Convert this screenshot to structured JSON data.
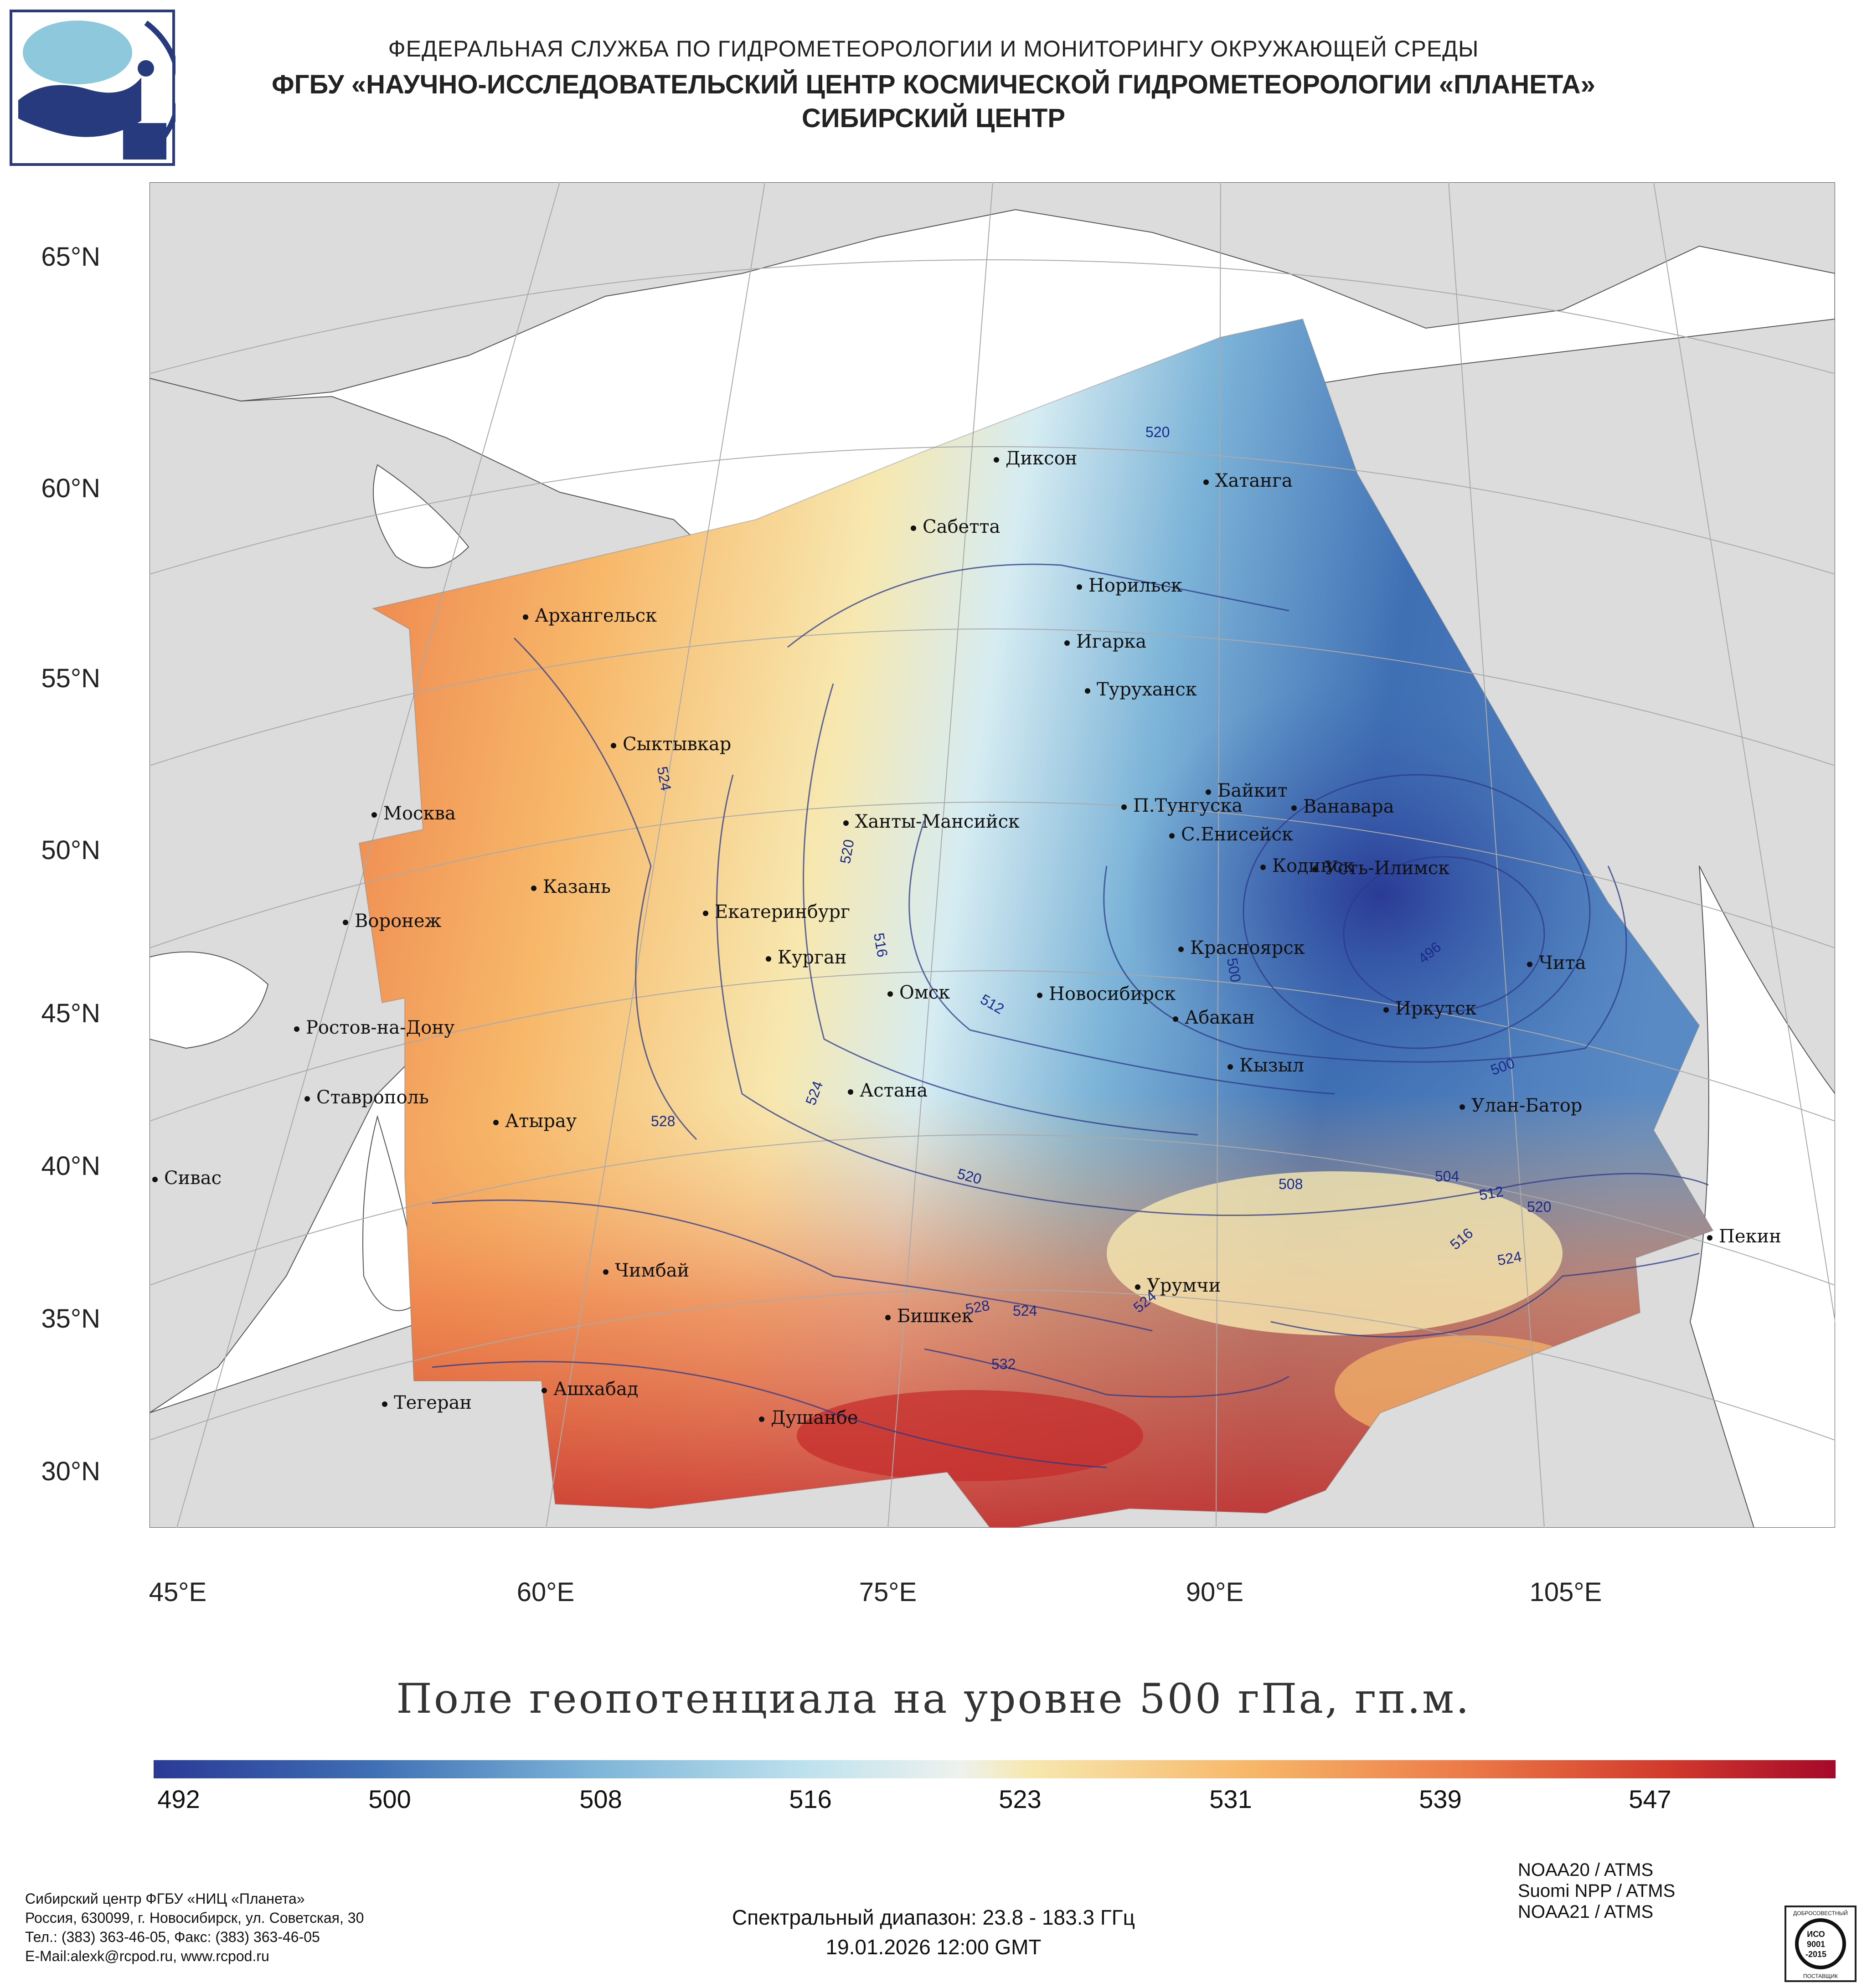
{
  "header": {
    "line1": "ФЕДЕРАЛЬНАЯ СЛУЖБА ПО ГИДРОМЕТЕОРОЛОГИИ И МОНИТОРИНГУ ОКРУЖАЮЩЕЙ СРЕДЫ",
    "line2": "ФГБУ «НАУЧНО-ИССЛЕДОВАТЕЛЬСКИЙ ЦЕНТР КОСМИЧЕСКОЙ ГИДРОМЕТЕОРОЛОГИИ «ПЛАНЕТА»",
    "line3": "СИБИРСКИЙ ЦЕНТР"
  },
  "map": {
    "lat_labels": [
      "65°N",
      "60°N",
      "55°N",
      "50°N",
      "45°N",
      "40°N",
      "35°N",
      "30°N"
    ],
    "lon_labels": [
      "45°E",
      "60°E",
      "75°E",
      "90°E",
      "105°E"
    ],
    "cities": [
      "Диксон",
      "Хатанга",
      "Сабетта",
      "Норильск",
      "Игарка",
      "Архангельск",
      "Туруханск",
      "Сыктывкар",
      "Байкит",
      "П.Тунгуска",
      "Ванавара",
      "Москва",
      "Ханты-Мансийск",
      "С.Енисейск",
      "Кодинск",
      "Усть-Илимск",
      "Казань",
      "Екатеринбург",
      "Воронеж",
      "Красноярск",
      "Курган",
      "Чита",
      "Омск",
      "Новосибирск",
      "Иркутск",
      "Абакан",
      "Ростов-на-Дону",
      "Кызыл",
      "Ставрополь",
      "Астана",
      "Улан-Батор",
      "Атырау",
      "Сивас",
      "Пекин",
      "Чимбай",
      "Урумчи",
      "Бишкек",
      "Ашхабад",
      "Тегеран",
      "Душанбе"
    ],
    "contour_labels": [
      "520",
      "524",
      "520",
      "516",
      "512",
      "500",
      "496",
      "500",
      "524",
      "528",
      "520",
      "508",
      "504",
      "512",
      "520",
      "516",
      "524",
      "528",
      "524",
      "532",
      "524"
    ],
    "colors": {
      "land": "#dcdcdc",
      "ocean": "#ffffff",
      "contour": "#2b3a8a"
    }
  },
  "title": "Поле геопотенциала на уровне 500 гПа, гп.м.",
  "colorbar": {
    "ticks": [
      "492",
      "500",
      "508",
      "516",
      "523",
      "531",
      "539",
      "547"
    ],
    "colors": [
      "#2a3a96",
      "#3f6fb4",
      "#7db4d8",
      "#cfe8f0",
      "#f7e8b0",
      "#f7b86a",
      "#ec7a48",
      "#d13a2c",
      "#a5092a"
    ]
  },
  "footer": {
    "org_lines": [
      "Сибирский центр ФГБУ «НИЦ «Планета»",
      "Россия, 630099, г. Новосибирск, ул. Советская, 30",
      "Тел.: (383) 363-46-05, Факс: (383) 363-46-05",
      "E-Mail:alexk@rcpod.ru, www.rcpod.ru"
    ],
    "satellites": [
      "NOAA20 / ATMS",
      "Suomi NPP / ATMS",
      "NOAA21 / ATMS"
    ],
    "spectral": "Спектральный диапазон: 23.8 - 183.3 ГГц",
    "datetime": "19.01.2026 12:00 GMT"
  },
  "iso_badge": {
    "top": "ДОБРОСОВЕСТНЫЙ",
    "mid1": "ИСО",
    "mid2": "9001",
    "mid3": "-2015",
    "bottom": "ПОСТАВЩИК"
  }
}
